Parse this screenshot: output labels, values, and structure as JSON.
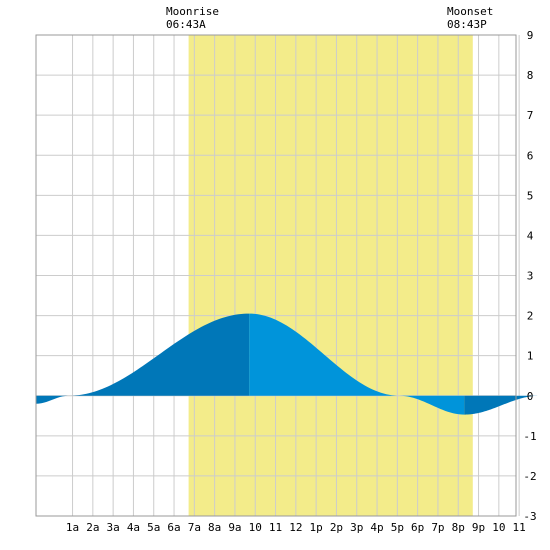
{
  "chart_data": {
    "type": "area",
    "title": "",
    "xlabel": "",
    "ylabel": "",
    "x_range_hours": [
      -0.8,
      24
    ],
    "ylim": [
      -3,
      9
    ],
    "y_ticks": [
      -3,
      -2,
      -1,
      0,
      1,
      2,
      3,
      4,
      5,
      6,
      7,
      8,
      9
    ],
    "x_ticks": [
      {
        "hour": 1,
        "label": "1a"
      },
      {
        "hour": 2,
        "label": "2a"
      },
      {
        "hour": 3,
        "label": "3a"
      },
      {
        "hour": 4,
        "label": "4a"
      },
      {
        "hour": 5,
        "label": "5a"
      },
      {
        "hour": 6,
        "label": "6a"
      },
      {
        "hour": 7,
        "label": "7a"
      },
      {
        "hour": 8,
        "label": "8a"
      },
      {
        "hour": 9,
        "label": "9a"
      },
      {
        "hour": 10,
        "label": "10"
      },
      {
        "hour": 11,
        "label": "11"
      },
      {
        "hour": 12,
        "label": "12"
      },
      {
        "hour": 13,
        "label": "1p"
      },
      {
        "hour": 14,
        "label": "2p"
      },
      {
        "hour": 15,
        "label": "3p"
      },
      {
        "hour": 16,
        "label": "4p"
      },
      {
        "hour": 17,
        "label": "5p"
      },
      {
        "hour": 18,
        "label": "6p"
      },
      {
        "hour": 19,
        "label": "7p"
      },
      {
        "hour": 20,
        "label": "8p"
      },
      {
        "hour": 21,
        "label": "9p"
      },
      {
        "hour": 22,
        "label": "10"
      },
      {
        "hour": 23,
        "label": "11"
      }
    ],
    "grid": true,
    "moon": {
      "rise": {
        "title": "Moonrise",
        "time": "06:43A",
        "hour": 6.717
      },
      "set": {
        "title": "Moonset",
        "time": "08:43P",
        "hour": 20.717
      },
      "band_color": "#f3ec8a"
    },
    "tide": {
      "color_rising": "#0077b8",
      "color_falling": "#0094da",
      "points": [
        {
          "hour": -0.8,
          "height": -0.2
        },
        {
          "hour": 0.8,
          "height": 0.0
        },
        {
          "hour": 9.7,
          "height": 2.05
        },
        {
          "hour": 17.1,
          "height": 0.0
        },
        {
          "hour": 20.3,
          "height": -0.47
        },
        {
          "hour": 24.0,
          "height": 0.0
        }
      ]
    }
  }
}
